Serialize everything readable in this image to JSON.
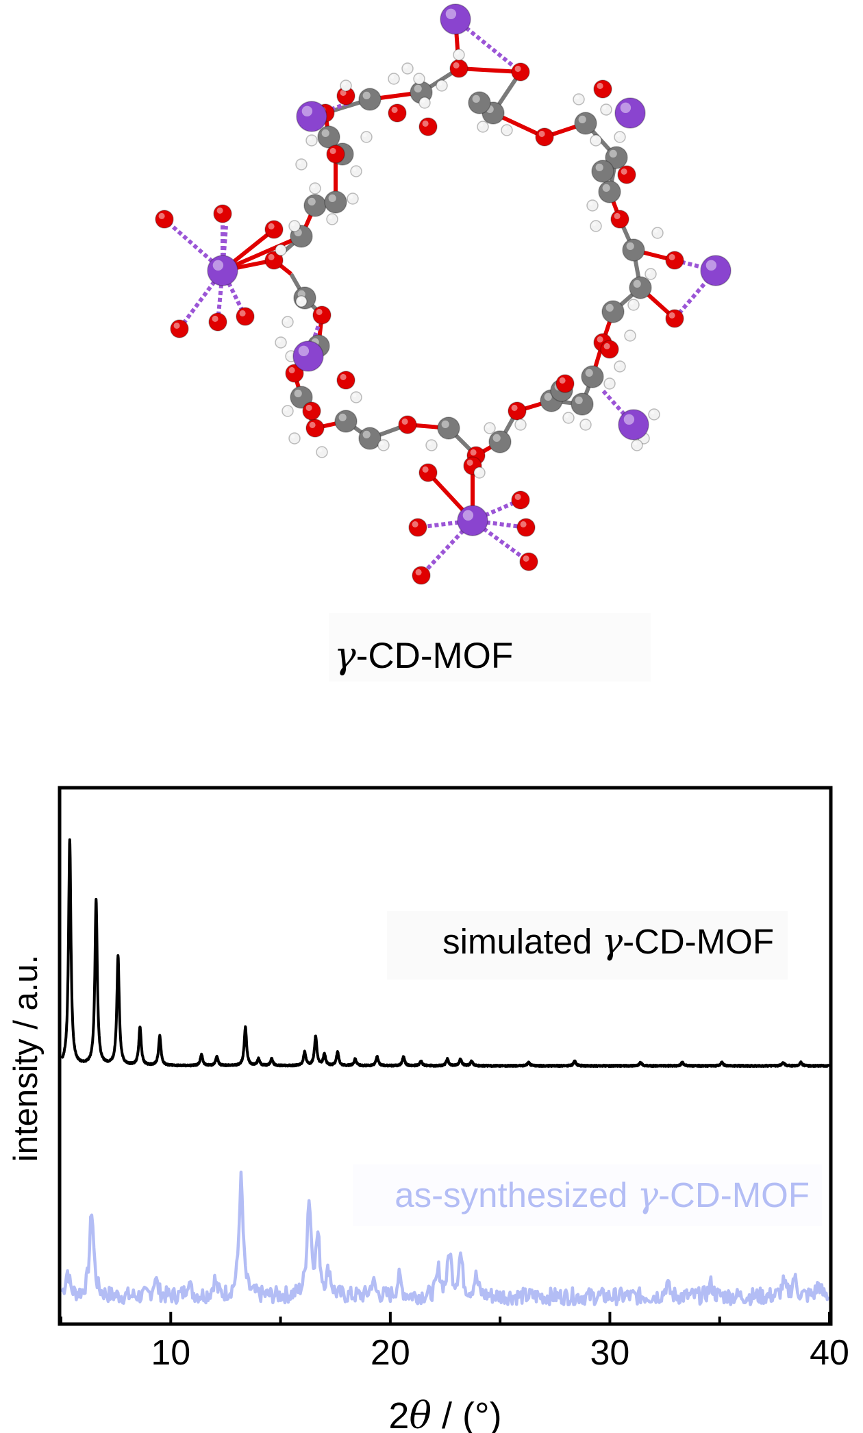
{
  "structure": {
    "caption_prefix": "γ",
    "caption_suffix": "-CD-MOF",
    "atom_colors": {
      "carbon": "#7a7a7a",
      "oxygen": "#e00000",
      "hydrogen": "#f2f2f2",
      "potassium": "#8a44cf",
      "coordination_bond": "#9b55d6"
    }
  },
  "chart_data": {
    "type": "line",
    "title": "",
    "xlabel_number": "2",
    "xlabel_symbol": "θ",
    "xlabel_unit": " / (°)",
    "ylabel": "intensity / a.u.",
    "xlim": [
      5,
      40
    ],
    "xticks": [
      10,
      20,
      30,
      40
    ],
    "yaxis_ticks_shown": false,
    "grid": false,
    "series": [
      {
        "name_prefix": "simulated ",
        "name_symbol": "γ",
        "name_suffix": "-CD-MOF",
        "color": "#000000",
        "baseline": 0.6,
        "peaks": [
          [
            5.4,
            1.0
          ],
          [
            6.6,
            0.73
          ],
          [
            7.6,
            0.48
          ],
          [
            8.6,
            0.17
          ],
          [
            9.5,
            0.13
          ],
          [
            11.4,
            0.05
          ],
          [
            12.1,
            0.04
          ],
          [
            13.4,
            0.17
          ],
          [
            14.0,
            0.03
          ],
          [
            14.6,
            0.03
          ],
          [
            16.1,
            0.06
          ],
          [
            16.6,
            0.13
          ],
          [
            17.0,
            0.05
          ],
          [
            17.6,
            0.06
          ],
          [
            18.4,
            0.03
          ],
          [
            19.4,
            0.04
          ],
          [
            20.6,
            0.04
          ],
          [
            21.4,
            0.02
          ],
          [
            22.6,
            0.03
          ],
          [
            23.2,
            0.03
          ],
          [
            23.7,
            0.02
          ],
          [
            26.3,
            0.015
          ],
          [
            28.4,
            0.02
          ],
          [
            31.4,
            0.015
          ],
          [
            33.3,
            0.015
          ],
          [
            35.1,
            0.015
          ],
          [
            37.9,
            0.015
          ],
          [
            38.7,
            0.015
          ]
        ]
      },
      {
        "name_prefix": "as-synthesized ",
        "name_symbol": "γ",
        "name_suffix": "-CD-MOF",
        "color": "#b3bdf5",
        "baseline": 0.02,
        "peaks": [
          [
            5.3,
            0.08
          ],
          [
            6.4,
            0.28
          ],
          [
            9.3,
            0.06
          ],
          [
            10.8,
            0.05
          ],
          [
            12.0,
            0.05
          ],
          [
            13.2,
            0.38
          ],
          [
            16.3,
            0.31
          ],
          [
            16.7,
            0.18
          ],
          [
            17.2,
            0.08
          ],
          [
            19.2,
            0.05
          ],
          [
            20.4,
            0.06
          ],
          [
            22.2,
            0.08
          ],
          [
            22.7,
            0.14
          ],
          [
            23.2,
            0.13
          ],
          [
            23.9,
            0.06
          ],
          [
            32.6,
            0.04
          ],
          [
            34.6,
            0.04
          ],
          [
            37.9,
            0.04
          ],
          [
            38.4,
            0.06
          ],
          [
            39.5,
            0.04
          ]
        ]
      }
    ]
  }
}
